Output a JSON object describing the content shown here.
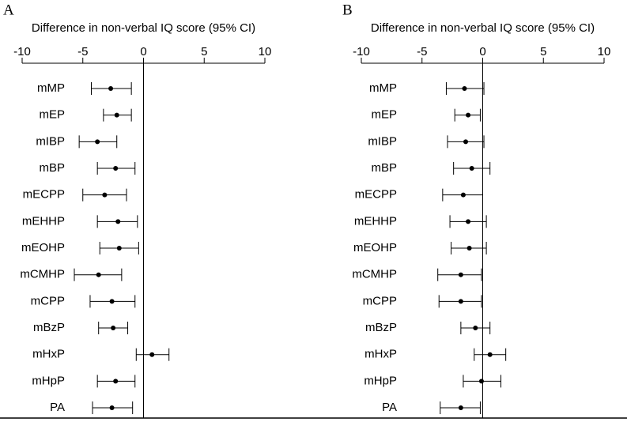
{
  "chart_data": [
    {
      "type": "forest",
      "panel_label": "A",
      "title": "Difference in non-verbal IQ score (95% CI)",
      "categories": [
        "mMP",
        "mEP",
        "mIBP",
        "mBP",
        "mECPP",
        "mEHHP",
        "mEOHP",
        "mCMHP",
        "mCPP",
        "mBzP",
        "mHxP",
        "mHpP",
        "PA"
      ],
      "values": [
        -2.7,
        -2.2,
        -3.8,
        -2.3,
        -3.2,
        -2.1,
        -2.0,
        -3.7,
        -2.6,
        -2.5,
        0.7,
        -2.3,
        -2.6
      ],
      "lower": [
        -4.3,
        -3.3,
        -5.3,
        -3.8,
        -5.0,
        -3.8,
        -3.6,
        -5.7,
        -4.4,
        -3.7,
        -0.6,
        -3.8,
        -4.2
      ],
      "upper": [
        -1.0,
        -1.0,
        -2.2,
        -0.7,
        -1.4,
        -0.5,
        -0.4,
        -1.8,
        -0.7,
        -1.3,
        2.1,
        -0.7,
        -0.9
      ],
      "xlim": [
        -10,
        10
      ],
      "xticks": [
        -10,
        -5,
        0,
        5,
        10
      ],
      "color": "#000000"
    },
    {
      "type": "forest",
      "panel_label": "B",
      "title": "Difference in non-verbal IQ score (95% CI)",
      "categories": [
        "mMP",
        "mEP",
        "mIBP",
        "mBP",
        "mECPP",
        "mEHHP",
        "mEOHP",
        "mCMHP",
        "mCPP",
        "mBzP",
        "mHxP",
        "mHpP",
        "PA"
      ],
      "values": [
        -1.5,
        -1.2,
        -1.4,
        -0.9,
        -1.6,
        -1.2,
        -1.1,
        -1.8,
        -1.8,
        -0.6,
        0.6,
        -0.1,
        -1.8
      ],
      "lower": [
        -3.0,
        -2.3,
        -2.9,
        -2.4,
        -3.3,
        -2.7,
        -2.6,
        -3.7,
        -3.6,
        -1.8,
        -0.7,
        -1.6,
        -3.5
      ],
      "upper": [
        0.1,
        -0.2,
        0.1,
        0.6,
        0.0,
        0.3,
        0.3,
        -0.1,
        -0.1,
        0.6,
        1.9,
        1.5,
        -0.2
      ],
      "xlim": [
        -10,
        10
      ],
      "xticks": [
        -10,
        -5,
        0,
        5,
        10
      ],
      "color": "#000000"
    }
  ]
}
